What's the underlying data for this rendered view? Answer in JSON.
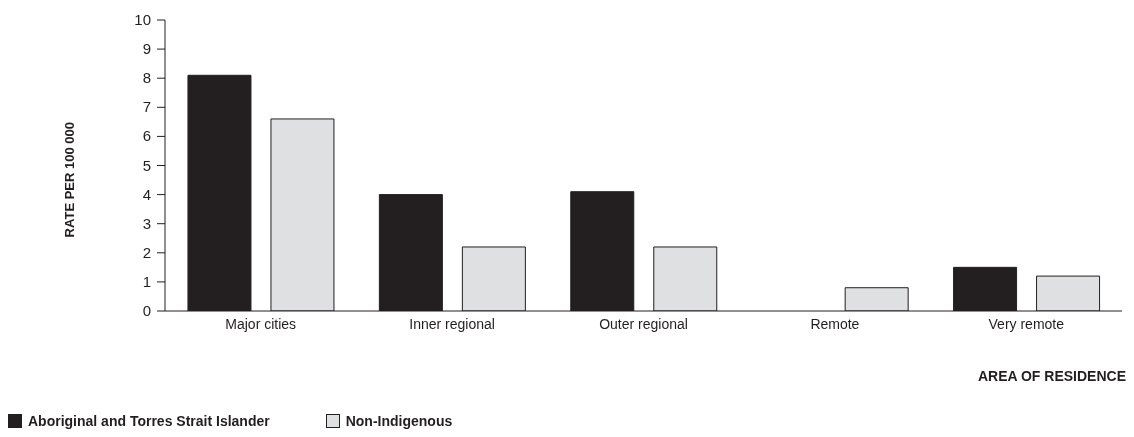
{
  "chart_data": {
    "type": "bar",
    "xlabel": "AREA OF RESIDENCE",
    "ylabel": "RATE PER 100 000",
    "categories": [
      "Major cities",
      "Inner regional",
      "Outer regional",
      "Remote",
      "Very remote"
    ],
    "series": [
      {
        "name": "Aboriginal and Torres Strait Islander",
        "color": "#231f20",
        "values": [
          8.1,
          4.0,
          4.1,
          0,
          1.5
        ]
      },
      {
        "name": "Non-Indigenous",
        "color": "#dfe0e2",
        "values": [
          6.6,
          2.2,
          2.2,
          0.8,
          1.2
        ]
      }
    ],
    "ylim": [
      0,
      10
    ],
    "yticks": [
      0,
      1,
      2,
      3,
      4,
      5,
      6,
      7,
      8,
      9,
      10
    ],
    "grid": false,
    "legend": "bottom left"
  }
}
